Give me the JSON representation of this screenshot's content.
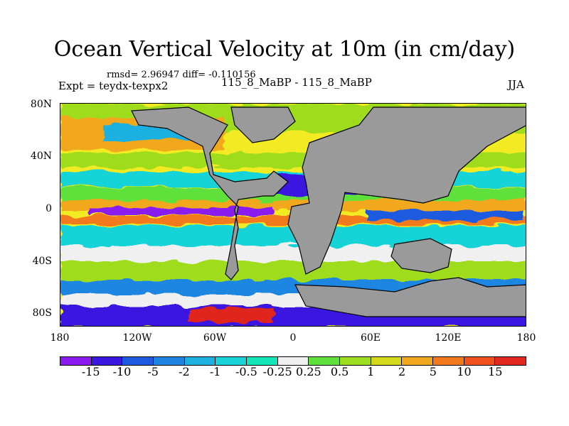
{
  "title": "Ocean Vertical Velocity at 10m (in cm/day)",
  "stats": "rmsd= 2.96947 diff= -0.110156",
  "experiment": "Expt = teydx-texpx2",
  "case": "115_8_MaBP - 115_8_MaBP",
  "season": "JJA",
  "map": {
    "land_color": "#9a9a9a",
    "lat_labels": [
      "80N",
      "40N",
      "0",
      "40S",
      "80S"
    ],
    "lon_labels": [
      "180",
      "120W",
      "60W",
      "0",
      "60E",
      "120E",
      "180"
    ]
  },
  "colorbar": {
    "colors": [
      "#8b1af0",
      "#3a18e0",
      "#1e5ae0",
      "#1e86e0",
      "#1eb0e0",
      "#19d3d8",
      "#12e6b8",
      "#f0f0f0",
      "#5fe03a",
      "#9edc1e",
      "#d6d81e",
      "#f2a81e",
      "#f27a1e",
      "#f0501e",
      "#e0281e"
    ],
    "labels": [
      "-15",
      "-10",
      "-5",
      "-2",
      "-1",
      "-0.5",
      "-0.25",
      "0.25",
      "0.5",
      "1",
      "2",
      "5",
      "10",
      "15"
    ]
  }
}
